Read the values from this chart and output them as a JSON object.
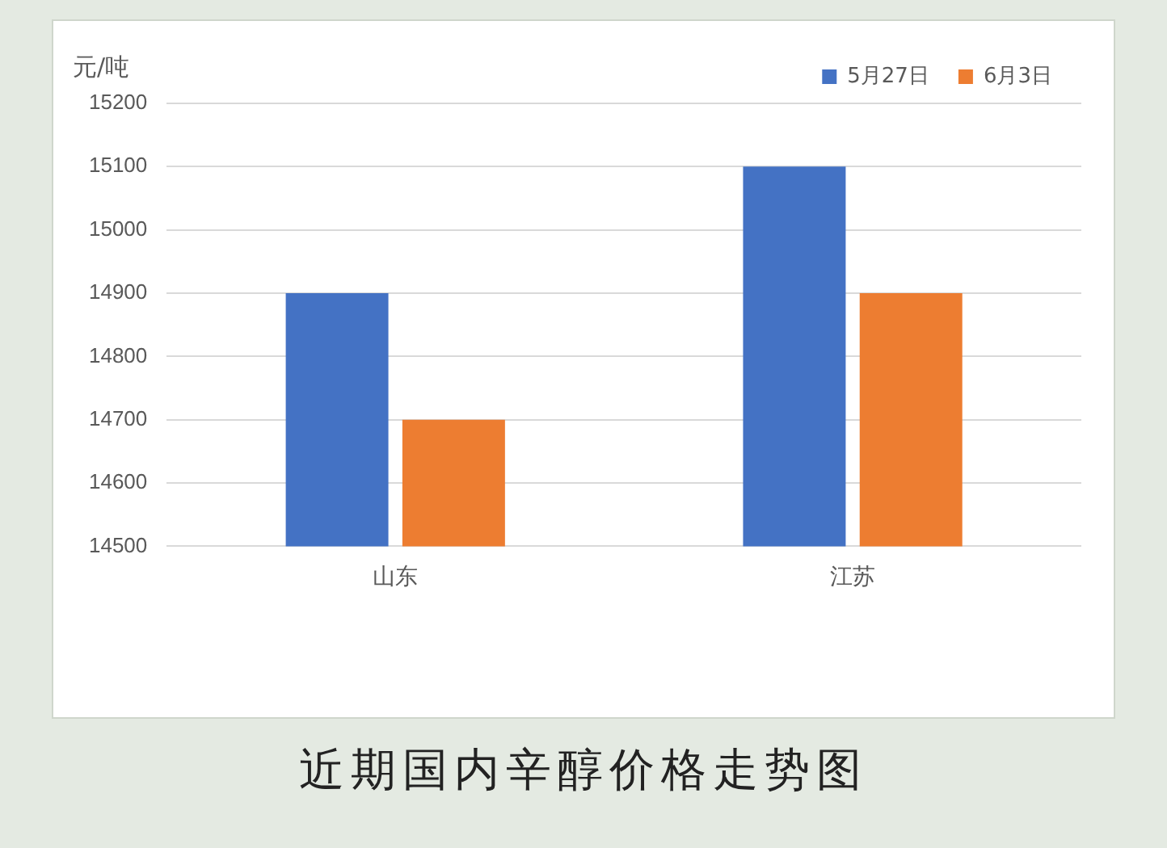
{
  "chart_data": {
    "type": "bar",
    "title": "近期国内辛醇价格走势图",
    "ylabel": "元/吨",
    "categories": [
      "山东",
      "江苏"
    ],
    "series": [
      {
        "name": "5月27日",
        "color": "#4472c4",
        "values": [
          14900,
          15100
        ]
      },
      {
        "name": "6月3日",
        "color": "#ed7d31",
        "values": [
          14700,
          14900
        ]
      }
    ],
    "ylim": [
      14500,
      15200
    ],
    "yticks": [
      14500,
      14600,
      14700,
      14800,
      14900,
      15000,
      15100,
      15200
    ],
    "grid": "y",
    "legend": "top right"
  }
}
